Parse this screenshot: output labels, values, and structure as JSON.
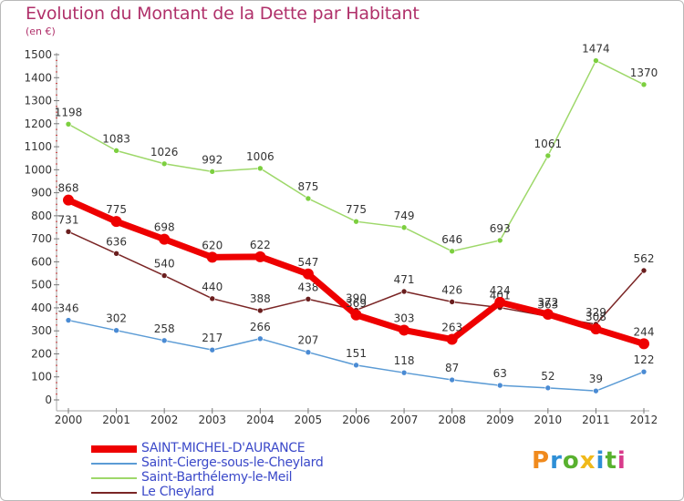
{
  "title": "Evolution du Montant de la Dette par Habitant",
  "subtitle": "(en €)",
  "logo": {
    "text": "Proxiti",
    "colors": [
      "#f08a1d",
      "#2e8fd6",
      "#59b12f",
      "#f0b91a",
      "#2e8fd6",
      "#59b12f",
      "#d83b8b"
    ]
  },
  "chart_data": {
    "type": "line",
    "title": "Evolution du Montant de la Dette par Habitant",
    "ylabel": "(en €)",
    "xlabel": "",
    "x": [
      "2000",
      "2001",
      "2002",
      "2003",
      "2004",
      "2005",
      "2006",
      "2007",
      "2008",
      "2009",
      "2010",
      "2011",
      "2012"
    ],
    "ylim": [
      0,
      1500
    ],
    "yticks": [
      0,
      100,
      200,
      300,
      400,
      500,
      600,
      700,
      800,
      900,
      1000,
      1100,
      1200,
      1300,
      1400,
      1500
    ],
    "grid": false,
    "legend_position": "bottom-left",
    "series": [
      {
        "name": "SAINT-MICHEL-D'AURANCE",
        "color": "#ee0000",
        "values": [
          868,
          775,
          698,
          620,
          622,
          547,
          369,
          303,
          263,
          424,
          372,
          308,
          244
        ]
      },
      {
        "name": "Saint-Cierge-sous-le-Cheylard",
        "color": "#5b9bd5",
        "values": [
          346,
          302,
          258,
          217,
          266,
          207,
          151,
          118,
          87,
          63,
          52,
          39,
          122
        ]
      },
      {
        "name": "Saint-Barthélemy-le-Meil",
        "color": "#9ed86a",
        "values": [
          1198,
          1083,
          1026,
          992,
          1006,
          875,
          775,
          749,
          646,
          693,
          1061,
          1474,
          1370
        ]
      },
      {
        "name": "Le Cheylard",
        "color": "#7a2525",
        "values": [
          731,
          636,
          540,
          440,
          388,
          438,
          390,
          471,
          426,
          401,
          363,
          329,
          562
        ]
      }
    ]
  }
}
